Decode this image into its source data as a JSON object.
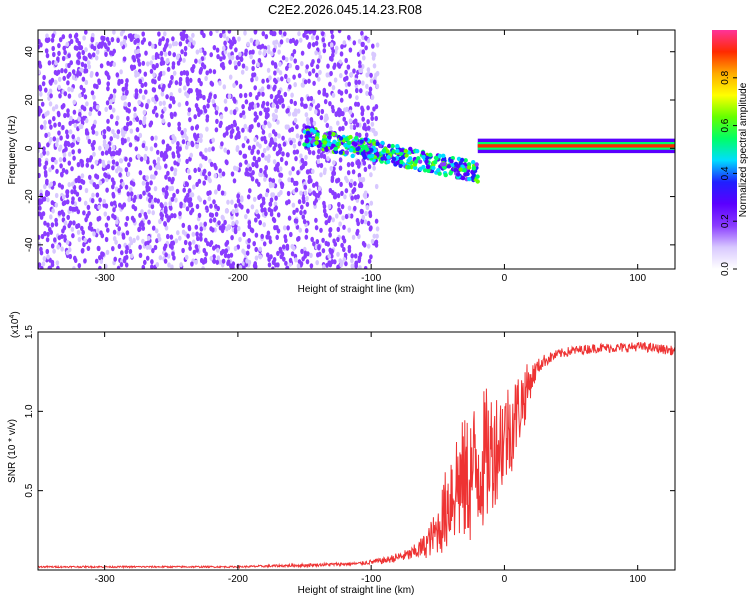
{
  "page": {
    "title": "C2E2.2026.045.14.23.R08"
  },
  "chart_data": [
    {
      "type": "heatmap",
      "xlabel": "Height of straight line (km)",
      "ylabel": "Frequency (Hz)",
      "xlim": [
        -350,
        128
      ],
      "ylim": [
        -50,
        49
      ],
      "xticks": [
        -300,
        -200,
        -100,
        0,
        100
      ],
      "yticks": [
        -40,
        -20,
        0,
        20,
        40
      ],
      "colorbar": {
        "label": "Normalized spectral amplitude",
        "range": [
          0,
          1
        ],
        "ticks": [
          "0.0",
          "0.2",
          "0.4",
          "0.6",
          "0.8"
        ],
        "tick_values": [
          0,
          0.2,
          0.4,
          0.6,
          0.8
        ],
        "colors": [
          "#ffffff",
          "#d8c8ff",
          "#8a3cff",
          "#5a00ff",
          "#2020ff",
          "#00ddff",
          "#00ff66",
          "#66ff00",
          "#ffff00",
          "#ffaa00",
          "#ff2a00",
          "#ff3399"
        ]
      },
      "features": [
        {
          "segment": "noise",
          "x_range": [
            -350,
            -95
          ],
          "freq_range": [
            -50,
            49
          ],
          "amplitude": 0.1
        },
        {
          "segment": "transition",
          "x_range": [
            -150,
            -20
          ],
          "freq_center_range": [
            5,
            -10
          ],
          "amplitude": 0.35
        },
        {
          "segment": "carrier",
          "x_range": [
            -20,
            128
          ],
          "freq_center": 1,
          "amplitude": 0.95
        }
      ]
    },
    {
      "type": "line",
      "xlabel": "Height of straight line (km)",
      "ylabel": "SNR (10 * v/v)",
      "y_scale_label": "(x10",
      "y_scale_exponent": "4",
      "xlim": [
        -350,
        128
      ],
      "ylim": [
        0,
        1.5
      ],
      "xticks": [
        -300,
        -200,
        -100,
        0,
        100
      ],
      "yticks": [
        "0.5",
        "1.0",
        "1.5"
      ],
      "ytick_values": [
        0.5,
        1.0,
        1.5
      ],
      "series": [
        {
          "color": "#ee3333",
          "x": [
            -350,
            -300,
            -250,
            -200,
            -150,
            -110,
            -90,
            -70,
            -60,
            -50,
            -45,
            -40,
            -35,
            -30,
            -25,
            -20,
            -15,
            -10,
            -5,
            0,
            5,
            10,
            15,
            20,
            25,
            30,
            40,
            50,
            60,
            70,
            80,
            90,
            100,
            110,
            120,
            128
          ],
          "values": [
            0.02,
            0.02,
            0.02,
            0.02,
            0.03,
            0.04,
            0.06,
            0.1,
            0.15,
            0.25,
            0.35,
            0.5,
            0.55,
            0.55,
            0.6,
            0.65,
            0.7,
            0.75,
            0.8,
            0.85,
            0.9,
            1.0,
            1.1,
            1.2,
            1.28,
            1.32,
            1.36,
            1.38,
            1.39,
            1.4,
            1.4,
            1.4,
            1.41,
            1.4,
            1.39,
            1.38
          ],
          "noise": [
            0.005,
            0.005,
            0.005,
            0.005,
            0.01,
            0.01,
            0.02,
            0.04,
            0.08,
            0.15,
            0.25,
            0.35,
            0.4,
            0.4,
            0.45,
            0.45,
            0.45,
            0.4,
            0.35,
            0.35,
            0.3,
            0.25,
            0.2,
            0.1,
            0.05,
            0.04,
            0.03,
            0.03,
            0.03,
            0.03,
            0.03,
            0.03,
            0.03,
            0.03,
            0.03,
            0.03
          ]
        }
      ]
    }
  ]
}
